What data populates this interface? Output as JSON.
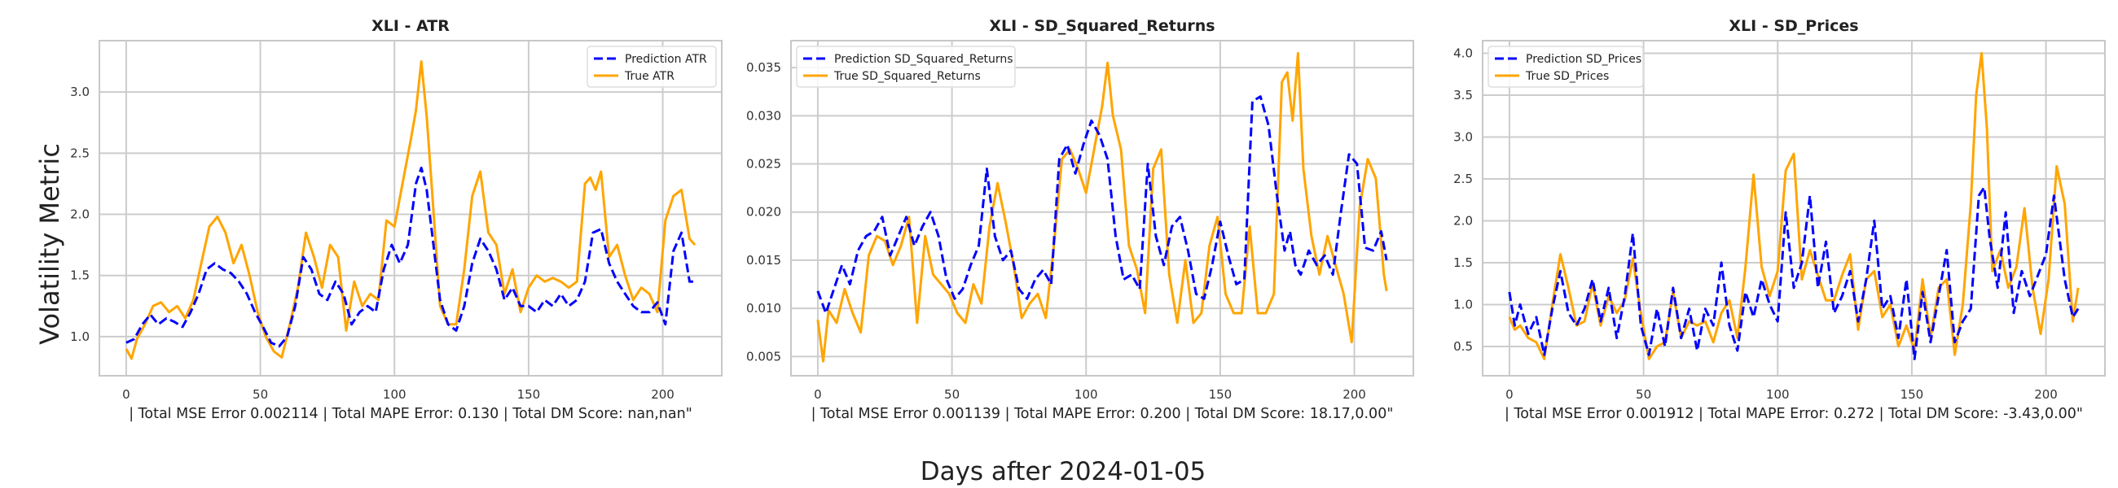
{
  "figure": {
    "ylabel": "Volatility Metric",
    "xlabel": "Days after 2024-01-05"
  },
  "colors": {
    "prediction": "#0000ff",
    "truth": "#ffa500",
    "grid": "#cccccc",
    "axes": "#c8c8c8"
  },
  "chart_data": [
    {
      "type": "line",
      "title": "XLI - ATR",
      "xlabel": "| Total MSE Error 0.002114 | Total MAPE Error: 0.130 | Total DM Score: nan,nan\"",
      "ylabel": "Volatility Metric",
      "xlim": [
        -10,
        222
      ],
      "ylim": [
        0.68,
        3.42
      ],
      "xticks": [
        0,
        50,
        100,
        150,
        200
      ],
      "yticks": [
        1.0,
        1.5,
        2.0,
        2.5,
        3.0
      ],
      "ytick_labels": [
        "1.0",
        "1.5",
        "2.0",
        "2.5",
        "3.0"
      ],
      "legend": "top-right",
      "grid": true,
      "series": [
        {
          "name": "Prediction ATR",
          "style": "dashed",
          "color": "#0000ff",
          "x": [
            0,
            3,
            6,
            9,
            12,
            15,
            18,
            21,
            24,
            27,
            30,
            33,
            36,
            39,
            42,
            45,
            48,
            51,
            54,
            57,
            60,
            63,
            66,
            69,
            72,
            75,
            78,
            81,
            84,
            87,
            90,
            93,
            96,
            99,
            102,
            105,
            108,
            110,
            112,
            114,
            117,
            120,
            123,
            126,
            129,
            132,
            135,
            138,
            141,
            144,
            147,
            150,
            153,
            156,
            159,
            162,
            165,
            168,
            171,
            174,
            177,
            180,
            183,
            186,
            189,
            192,
            195,
            198,
            201,
            204,
            207,
            210,
            212
          ],
          "y": [
            0.95,
            0.98,
            1.1,
            1.18,
            1.1,
            1.15,
            1.12,
            1.08,
            1.2,
            1.35,
            1.55,
            1.6,
            1.55,
            1.52,
            1.45,
            1.35,
            1.2,
            1.08,
            0.95,
            0.92,
            1.0,
            1.25,
            1.65,
            1.55,
            1.35,
            1.3,
            1.45,
            1.35,
            1.1,
            1.2,
            1.25,
            1.2,
            1.55,
            1.75,
            1.6,
            1.75,
            2.25,
            2.38,
            2.2,
            1.85,
            1.3,
            1.1,
            1.05,
            1.25,
            1.6,
            1.8,
            1.7,
            1.55,
            1.3,
            1.4,
            1.25,
            1.25,
            1.2,
            1.3,
            1.25,
            1.35,
            1.25,
            1.3,
            1.45,
            1.85,
            1.88,
            1.6,
            1.45,
            1.35,
            1.25,
            1.2,
            1.2,
            1.28,
            1.1,
            1.7,
            1.85,
            1.45,
            1.45
          ]
        },
        {
          "name": "True ATR",
          "style": "solid",
          "color": "#ffa500",
          "x": [
            0,
            2,
            4,
            7,
            10,
            13,
            16,
            19,
            22,
            25,
            28,
            31,
            34,
            37,
            40,
            43,
            46,
            49,
            52,
            55,
            58,
            61,
            64,
            67,
            70,
            73,
            76,
            79,
            82,
            85,
            88,
            91,
            94,
            97,
            100,
            103,
            106,
            108,
            110,
            112,
            114,
            117,
            120,
            123,
            126,
            129,
            132,
            135,
            138,
            141,
            144,
            147,
            150,
            153,
            156,
            159,
            162,
            165,
            168,
            171,
            173,
            175,
            177,
            180,
            183,
            186,
            189,
            192,
            195,
            198,
            201,
            204,
            207,
            210,
            212
          ],
          "y": [
            0.9,
            0.82,
            0.98,
            1.1,
            1.25,
            1.28,
            1.2,
            1.25,
            1.15,
            1.3,
            1.6,
            1.9,
            1.98,
            1.85,
            1.6,
            1.75,
            1.5,
            1.2,
            1.0,
            0.88,
            0.83,
            1.1,
            1.4,
            1.85,
            1.65,
            1.4,
            1.75,
            1.65,
            1.05,
            1.45,
            1.25,
            1.35,
            1.3,
            1.95,
            1.9,
            2.25,
            2.6,
            2.85,
            3.25,
            2.8,
            2.2,
            1.25,
            1.1,
            1.1,
            1.55,
            2.15,
            2.35,
            1.85,
            1.75,
            1.35,
            1.55,
            1.2,
            1.4,
            1.5,
            1.45,
            1.48,
            1.45,
            1.4,
            1.45,
            2.25,
            2.3,
            2.2,
            2.35,
            1.65,
            1.75,
            1.5,
            1.3,
            1.4,
            1.35,
            1.2,
            1.95,
            2.15,
            2.2,
            1.8,
            1.75
          ]
        }
      ]
    },
    {
      "type": "line",
      "title": "XLI - SD_Squared_Returns",
      "xlabel": "| Total MSE Error 0.001139 | Total MAPE Error: 0.200 | Total DM Score: 18.17,0.00\"",
      "ylabel": "",
      "xlim": [
        -10,
        222
      ],
      "ylim": [
        0.003,
        0.0378
      ],
      "xticks": [
        0,
        50,
        100,
        150,
        200
      ],
      "yticks": [
        0.005,
        0.01,
        0.015,
        0.02,
        0.025,
        0.03,
        0.035
      ],
      "ytick_labels": [
        "0.005",
        "0.010",
        "0.015",
        "0.020",
        "0.025",
        "0.030",
        "0.035"
      ],
      "legend": "top-left",
      "grid": true,
      "series": [
        {
          "name": "Prediction SD_Squared_Returns",
          "style": "dashed",
          "color": "#0000ff",
          "x": [
            0,
            3,
            6,
            9,
            12,
            15,
            18,
            21,
            24,
            27,
            30,
            33,
            36,
            39,
            42,
            45,
            48,
            51,
            54,
            57,
            60,
            63,
            66,
            69,
            72,
            75,
            78,
            81,
            84,
            87,
            90,
            93,
            96,
            99,
            102,
            105,
            108,
            111,
            114,
            117,
            120,
            123,
            126,
            129,
            132,
            135,
            138,
            141,
            144,
            147,
            150,
            153,
            156,
            159,
            162,
            165,
            168,
            171,
            174,
            176,
            178,
            180,
            183,
            186,
            189,
            192,
            195,
            198,
            201,
            204,
            207,
            210,
            212
          ],
          "y": [
            0.0118,
            0.0095,
            0.012,
            0.0145,
            0.0125,
            0.016,
            0.0175,
            0.018,
            0.0195,
            0.0155,
            0.0175,
            0.0195,
            0.0165,
            0.0185,
            0.02,
            0.0175,
            0.013,
            0.011,
            0.012,
            0.0145,
            0.0165,
            0.0245,
            0.0175,
            0.015,
            0.016,
            0.012,
            0.011,
            0.013,
            0.014,
            0.0125,
            0.0255,
            0.027,
            0.024,
            0.027,
            0.0295,
            0.028,
            0.0255,
            0.0175,
            0.013,
            0.0135,
            0.012,
            0.025,
            0.0175,
            0.0145,
            0.0185,
            0.0195,
            0.016,
            0.0115,
            0.011,
            0.0145,
            0.019,
            0.0155,
            0.0125,
            0.013,
            0.0315,
            0.032,
            0.029,
            0.022,
            0.016,
            0.018,
            0.0145,
            0.0135,
            0.016,
            0.0145,
            0.0155,
            0.0135,
            0.02,
            0.026,
            0.025,
            0.0163,
            0.016,
            0.018,
            0.015
          ]
        },
        {
          "name": "True SD_Squared_Returns",
          "style": "solid",
          "color": "#ffa500",
          "x": [
            0,
            2,
            4,
            7,
            10,
            13,
            16,
            19,
            22,
            25,
            28,
            31,
            34,
            37,
            40,
            43,
            46,
            49,
            52,
            55,
            58,
            61,
            64,
            67,
            70,
            73,
            76,
            79,
            82,
            85,
            88,
            91,
            94,
            97,
            100,
            103,
            106,
            108,
            110,
            113,
            116,
            119,
            122,
            125,
            128,
            131,
            134,
            137,
            140,
            143,
            146,
            149,
            152,
            155,
            158,
            161,
            164,
            167,
            170,
            173,
            175,
            177,
            179,
            181,
            184,
            187,
            190,
            193,
            196,
            199,
            202,
            205,
            208,
            211,
            212
          ],
          "y": [
            0.0088,
            0.0045,
            0.0098,
            0.0085,
            0.012,
            0.0095,
            0.0075,
            0.0155,
            0.0175,
            0.017,
            0.0145,
            0.0165,
            0.0195,
            0.0085,
            0.0175,
            0.0135,
            0.0125,
            0.0115,
            0.0095,
            0.0085,
            0.0125,
            0.0105,
            0.0185,
            0.023,
            0.019,
            0.0145,
            0.009,
            0.0105,
            0.0115,
            0.009,
            0.0165,
            0.0255,
            0.0265,
            0.0245,
            0.022,
            0.0265,
            0.031,
            0.0355,
            0.03,
            0.0265,
            0.0165,
            0.014,
            0.0095,
            0.0245,
            0.0265,
            0.0135,
            0.0085,
            0.015,
            0.0085,
            0.0095,
            0.0165,
            0.0195,
            0.0115,
            0.0095,
            0.0095,
            0.0185,
            0.0095,
            0.0095,
            0.0115,
            0.0335,
            0.0345,
            0.0295,
            0.0365,
            0.0245,
            0.0175,
            0.0135,
            0.0175,
            0.0145,
            0.0115,
            0.0065,
            0.0205,
            0.0255,
            0.0235,
            0.0135,
            0.0118
          ]
        }
      ]
    },
    {
      "type": "line",
      "title": "XLI - SD_Prices",
      "xlabel": "| Total MSE Error 0.001912 | Total MAPE Error: 0.272 | Total DM Score: -3.43,0.00\"",
      "ylabel": "",
      "xlim": [
        -10,
        222
      ],
      "ylim": [
        0.15,
        4.15
      ],
      "xticks": [
        0,
        50,
        100,
        150,
        200
      ],
      "yticks": [
        0.5,
        1.0,
        1.5,
        2.0,
        2.5,
        3.0,
        3.5,
        4.0
      ],
      "ytick_labels": [
        "0.5",
        "1.0",
        "1.5",
        "2.0",
        "2.5",
        "3.0",
        "3.5",
        "4.0"
      ],
      "legend": "top-left",
      "grid": true,
      "series": [
        {
          "name": "Prediction SD_Prices",
          "style": "dashed",
          "color": "#0000ff",
          "x": [
            0,
            2,
            4,
            7,
            10,
            13,
            16,
            19,
            22,
            25,
            28,
            31,
            34,
            37,
            40,
            43,
            46,
            49,
            52,
            55,
            58,
            61,
            64,
            67,
            70,
            73,
            76,
            79,
            82,
            85,
            88,
            91,
            94,
            97,
            100,
            103,
            106,
            109,
            112,
            115,
            118,
            121,
            124,
            127,
            130,
            133,
            136,
            139,
            142,
            145,
            148,
            151,
            154,
            157,
            160,
            163,
            166,
            169,
            172,
            175,
            177,
            179,
            182,
            185,
            188,
            191,
            194,
            197,
            200,
            203,
            205,
            207,
            210,
            212
          ],
          "y": [
            1.15,
            0.75,
            1.0,
            0.65,
            0.85,
            0.4,
            0.95,
            1.4,
            0.9,
            0.75,
            0.95,
            1.3,
            0.8,
            1.2,
            0.6,
            1.1,
            1.85,
            0.75,
            0.4,
            0.95,
            0.5,
            1.2,
            0.6,
            0.95,
            0.45,
            0.95,
            0.75,
            1.5,
            0.75,
            0.45,
            1.15,
            0.85,
            1.3,
            1.0,
            0.8,
            2.1,
            1.2,
            1.5,
            2.3,
            1.2,
            1.75,
            0.9,
            1.1,
            1.4,
            0.8,
            1.3,
            2.0,
            0.95,
            1.1,
            0.6,
            1.3,
            0.35,
            1.15,
            0.55,
            1.1,
            1.65,
            0.55,
            0.8,
            0.95,
            2.3,
            2.4,
            1.8,
            1.2,
            2.1,
            0.9,
            1.4,
            1.1,
            1.35,
            1.6,
            2.3,
            1.8,
            1.3,
            0.85,
            0.95
          ]
        },
        {
          "name": "True SD_Prices",
          "style": "solid",
          "color": "#ffa500",
          "x": [
            0,
            2,
            4,
            7,
            10,
            13,
            16,
            19,
            22,
            25,
            28,
            31,
            34,
            37,
            40,
            43,
            46,
            49,
            52,
            55,
            58,
            61,
            64,
            67,
            70,
            73,
            76,
            79,
            82,
            85,
            88,
            91,
            94,
            97,
            100,
            103,
            106,
            109,
            112,
            115,
            118,
            121,
            124,
            127,
            130,
            133,
            136,
            139,
            142,
            145,
            148,
            151,
            154,
            157,
            160,
            163,
            166,
            169,
            172,
            174,
            176,
            178,
            180,
            183,
            186,
            189,
            192,
            195,
            198,
            201,
            204,
            207,
            210,
            212
          ],
          "y": [
            0.85,
            0.7,
            0.75,
            0.6,
            0.55,
            0.35,
            1.0,
            1.6,
            1.2,
            0.75,
            0.8,
            1.25,
            0.75,
            1.1,
            0.9,
            1.05,
            1.55,
            0.9,
            0.35,
            0.5,
            0.55,
            1.15,
            0.6,
            0.8,
            0.75,
            0.8,
            0.55,
            0.9,
            1.05,
            0.6,
            1.45,
            2.55,
            1.45,
            1.1,
            1.4,
            2.6,
            2.8,
            1.3,
            1.65,
            1.35,
            1.05,
            1.05,
            1.35,
            1.6,
            0.7,
            1.3,
            1.4,
            0.85,
            1.0,
            0.5,
            0.75,
            0.45,
            1.3,
            0.6,
            1.2,
            1.3,
            0.4,
            1.0,
            2.2,
            3.5,
            4.0,
            3.1,
            1.4,
            1.65,
            1.2,
            1.45,
            2.15,
            1.2,
            0.65,
            1.3,
            2.65,
            2.2,
            0.8,
            1.2
          ]
        }
      ]
    }
  ]
}
